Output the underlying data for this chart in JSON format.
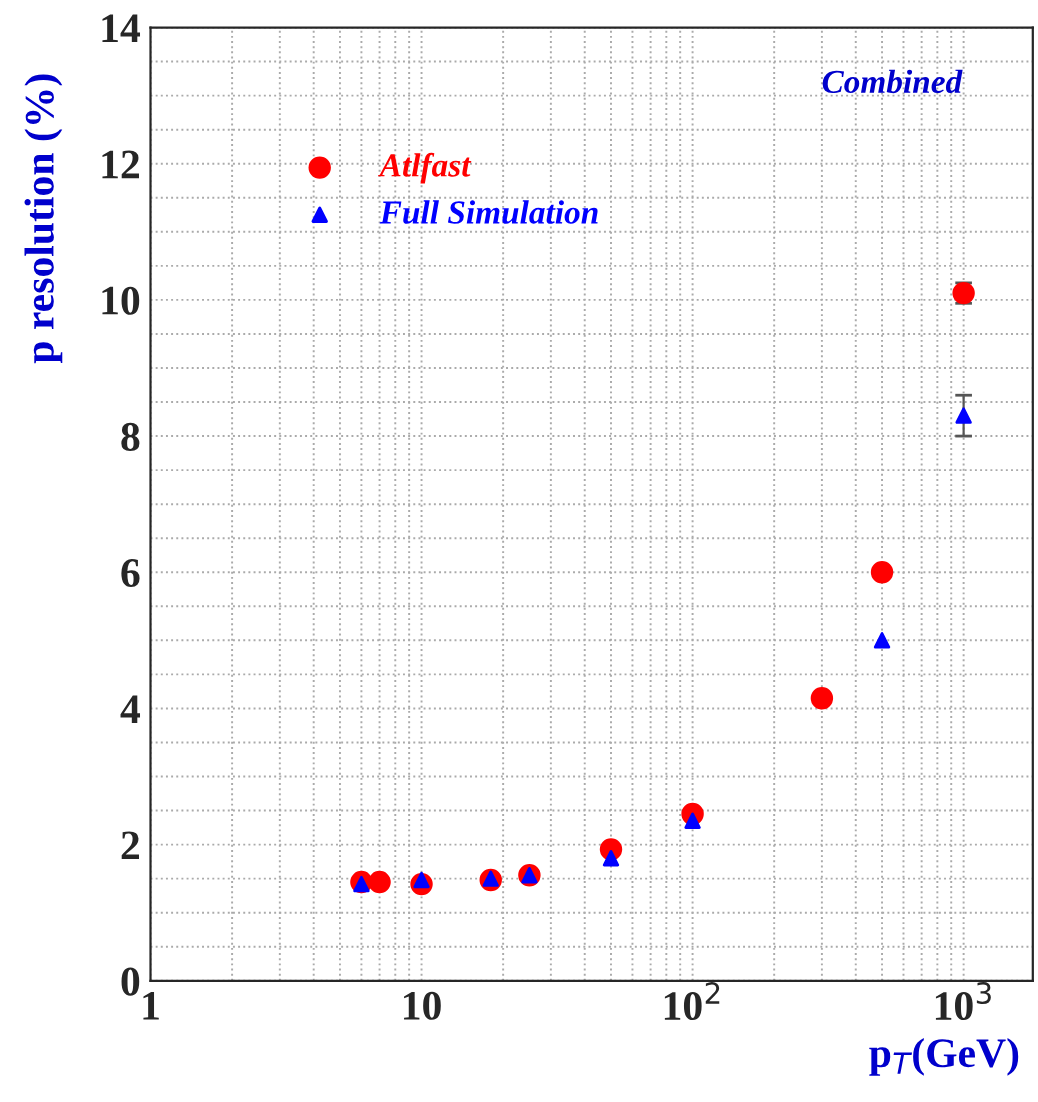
{
  "chart_data": {
    "type": "scatter",
    "xlabel": "p$_{T}$(GeV)",
    "ylabel": "p resolution (%)",
    "log": "x",
    "xlim": [
      1,
      1800
    ],
    "ylim": [
      0,
      14
    ],
    "xticks": [
      1,
      10,
      {
        "value": 100,
        "label": "10$^{2}$"
      },
      {
        "value": 1000,
        "label": "10$^{3}$"
      }
    ],
    "yticks": [
      0,
      2,
      4,
      6,
      8,
      10,
      12,
      14
    ],
    "grid": true,
    "legend": "top left",
    "annotations": [
      "Combined"
    ],
    "series": [
      {
        "name": "Atlfast",
        "color": "#ff0000",
        "marker": "circle",
        "x": [
          6,
          7,
          10,
          18,
          25,
          50,
          100,
          300,
          500,
          1000
        ],
        "values": [
          1.45,
          1.45,
          1.42,
          1.48,
          1.55,
          1.93,
          2.45,
          4.15,
          6.0,
          10.1
        ],
        "errors": [
          null,
          null,
          null,
          null,
          null,
          null,
          null,
          null,
          null,
          0.15
        ]
      },
      {
        "name": "Full Simulation",
        "color": "#0000ff",
        "marker": "triangle",
        "x": [
          6,
          10,
          18,
          25,
          50,
          100,
          500,
          1000
        ],
        "values": [
          1.42,
          1.48,
          1.5,
          1.55,
          1.8,
          2.35,
          5.0,
          8.3
        ],
        "errors": [
          null,
          null,
          null,
          null,
          null,
          null,
          null,
          0.3
        ]
      }
    ]
  }
}
